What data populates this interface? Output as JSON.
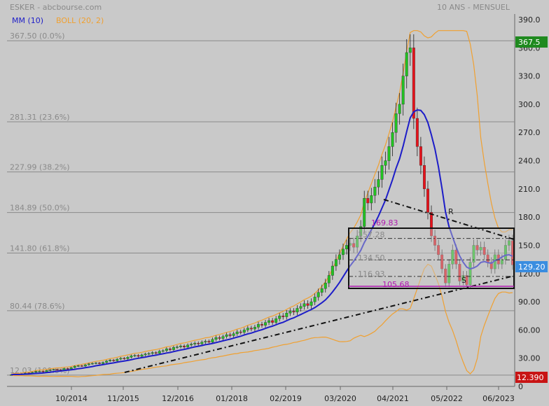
{
  "header": {
    "title": "ESKER - abcbourse.com",
    "period": "10 ANS - MENSUEL"
  },
  "legend": {
    "mm": "MM (10)",
    "boll": "BOLL (20, 2)"
  },
  "colors": {
    "background": "#c9c9c9",
    "up": "#22c322",
    "down": "#e8121b",
    "mm": "#1d1dc8",
    "boll": "#f0a030",
    "price_badge": "#3a8de0",
    "max_badge": "#1f8a1f",
    "min_badge": "#c81414",
    "annotation": "#b018b0"
  },
  "chart_data": {
    "type": "candlestick",
    "x_ticks": [
      "10/2014",
      "11/2015",
      "12/2016",
      "01/2018",
      "02/2019",
      "03/2020",
      "04/2021",
      "05/2022",
      "06/2023"
    ],
    "y_ticks": [
      "390.0",
      "360.0",
      "330.0",
      "300.0",
      "270.0",
      "240.0",
      "210.0",
      "180.0",
      "150.0",
      "120.0",
      "90.00",
      "60.00",
      "30.00",
      "0"
    ],
    "ylim": [
      0,
      390
    ],
    "fibonacci": [
      {
        "value": 367.5,
        "label": "367.50",
        "pct": "(0.0%)"
      },
      {
        "value": 281.31,
        "label": "281.31",
        "pct": "(23.6%)"
      },
      {
        "value": 227.99,
        "label": "227.99",
        "pct": "(38.2%)"
      },
      {
        "value": 184.89,
        "label": "184.89",
        "pct": "(50.0%)"
      },
      {
        "value": 141.8,
        "label": "141.80",
        "pct": "(61.8%)"
      },
      {
        "value": 80.44,
        "label": "80.44",
        "pct": "(78.6%)"
      },
      {
        "value": 12.03,
        "label": "12.03",
        "pct": "(100.0%)"
      }
    ],
    "badges": {
      "max": "367.5",
      "last": "129.20",
      "min": "12.390"
    },
    "box_levels": [
      {
        "value": 157.28,
        "label": "157.28"
      },
      {
        "value": 134.5,
        "label": "134.50"
      },
      {
        "value": 116.93,
        "label": "116.93"
      }
    ],
    "annotations": [
      {
        "value": 169.83,
        "label": "169.83"
      },
      {
        "value": 105.68,
        "label": "105.68"
      }
    ],
    "pattern_labels": {
      "resistance": "R",
      "support": "S"
    },
    "closes": [
      12.4,
      13,
      12.6,
      13.4,
      14.2,
      14,
      15,
      16,
      16.2,
      15.5,
      16.8,
      17.5,
      18,
      17.6,
      17.2,
      19,
      18.6,
      20,
      21.5,
      22,
      21.6,
      23,
      24,
      24.5,
      25,
      24.2,
      25.5,
      27,
      28,
      27.2,
      29,
      30,
      29.4,
      31,
      32.5,
      33,
      32,
      33.5,
      34.5,
      35,
      36,
      35.2,
      37.5,
      38,
      40,
      39,
      41.5,
      42,
      43,
      41.8,
      44,
      45,
      46,
      45.2,
      47,
      48,
      47,
      50,
      52,
      51,
      53,
      55,
      54,
      56,
      58,
      57.5,
      60,
      62,
      61,
      63,
      66,
      65,
      68,
      70,
      68,
      72,
      75,
      74,
      78,
      80,
      79,
      83,
      85,
      88,
      86,
      90,
      95,
      100,
      104,
      110,
      118,
      128,
      135,
      140,
      146,
      150,
      152,
      148,
      160,
      170,
      200,
      195,
      203,
      212,
      220,
      235,
      240,
      255,
      270,
      290,
      300,
      330,
      355,
      360,
      285,
      255,
      235,
      210,
      185,
      160,
      150,
      140,
      125,
      110,
      130,
      145,
      130,
      112,
      118,
      108,
      132,
      150,
      145,
      148,
      140,
      132,
      125,
      140,
      130,
      135,
      150,
      155,
      129.2
    ]
  }
}
